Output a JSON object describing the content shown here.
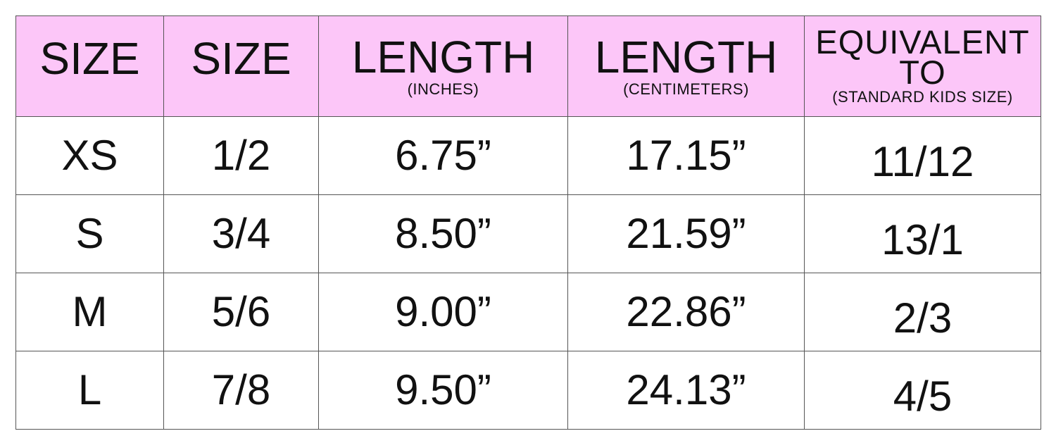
{
  "table": {
    "header": [
      {
        "title": "SIZE"
      },
      {
        "title": "SIZE"
      },
      {
        "title": "LENGTH",
        "subtitle": "(INCHES)"
      },
      {
        "title": "LENGTH",
        "subtitle": "(CENTIMETERS)"
      },
      {
        "title": "EQUIVALENT TO",
        "subtitle": "(STANDARD KIDS SIZE)"
      }
    ],
    "rows": [
      [
        "XS",
        "1/2",
        "6.75”",
        "17.15”",
        "11/12"
      ],
      [
        "S",
        "3/4",
        "8.50”",
        "21.59”",
        "13/1"
      ],
      [
        "M",
        "5/6",
        "9.00”",
        "22.86”",
        "2/3"
      ],
      [
        "L",
        "7/8",
        "9.50”",
        "24.13”",
        "4/5"
      ]
    ]
  }
}
